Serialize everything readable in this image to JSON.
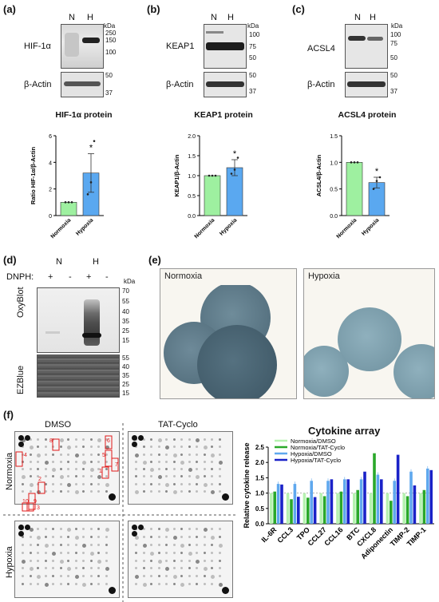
{
  "panels": {
    "a": "(a)",
    "b": "(b)",
    "c": "(c)",
    "d": "(d)",
    "e": "(e)",
    "f": "(f)"
  },
  "lanes": {
    "n": "N",
    "h": "H",
    "kda": "kDa"
  },
  "actin": "β-Actin",
  "panel_a": {
    "protein": "HIF-1α",
    "markers_top": [
      "250",
      "150",
      "100"
    ],
    "markers_bottom": [
      "50",
      "37"
    ]
  },
  "panel_b": {
    "protein": "KEAP1",
    "markers_top": [
      "100",
      "75",
      "50"
    ],
    "markers_bottom": [
      "50",
      "37"
    ]
  },
  "panel_c": {
    "protein": "ACSL4",
    "markers_top": [
      "100",
      "75",
      "50"
    ],
    "markers_bottom": [
      "50",
      "37"
    ]
  },
  "chart_data": [
    {
      "type": "bar",
      "title": "HIF-1α protein",
      "ylabel": "Ratio HIF-1α/β-Actin",
      "categories": [
        "Normoxia",
        "Hypoxia"
      ],
      "values": [
        1.0,
        3.2
      ],
      "errors": [
        0.0,
        1.45
      ],
      "points": [
        [
          1.0,
          1.0,
          1.0
        ],
        [
          1.6,
          2.5,
          5.6
        ]
      ],
      "ylim": [
        0,
        6
      ],
      "yticks": [
        "0",
        "2",
        "4",
        "6"
      ],
      "annotation": "*",
      "colors": [
        "#9ef0a0",
        "#5aa8f0"
      ]
    },
    {
      "type": "bar",
      "title": "KEAP1 protein",
      "ylabel": "KEAP1/β-Actin",
      "categories": [
        "Normoxia",
        "Hypoxia"
      ],
      "values": [
        1.0,
        1.2
      ],
      "errors": [
        0.0,
        0.2
      ],
      "points": [
        [
          1.0,
          1.0,
          1.0
        ],
        [
          1.05,
          1.15,
          1.45
        ]
      ],
      "ylim": [
        0,
        2
      ],
      "yticks": [
        "0.0",
        "0.5",
        "1.0",
        "1.5",
        "2.0"
      ],
      "annotation": "*",
      "colors": [
        "#9ef0a0",
        "#5aa8f0"
      ]
    },
    {
      "type": "bar",
      "title": "ACSL4 protein",
      "ylabel": "ACSL4/β-Actin",
      "categories": [
        "Normoxia",
        "Hypoxia"
      ],
      "values": [
        1.0,
        0.62
      ],
      "errors": [
        0.0,
        0.1
      ],
      "points": [
        [
          1.0,
          1.0,
          1.0
        ],
        [
          0.5,
          0.65,
          0.72
        ]
      ],
      "ylim": [
        0,
        1.5
      ],
      "yticks": [
        "0.0",
        "0.5",
        "1.0",
        "1.5"
      ],
      "annotation": "*",
      "colors": [
        "#9ef0a0",
        "#5aa8f0"
      ]
    },
    {
      "type": "bar",
      "title": "Cytokine array",
      "ylabel": "Relative cytokine release",
      "categories": [
        "IL-6R",
        "CCL3",
        "TPO",
        "CCL27",
        "CCL16",
        "BTC",
        "CXCL8",
        "Adiponectin",
        "TIMP-2",
        "TIMP-1"
      ],
      "series": [
        {
          "name": "Normoxia/DMSO",
          "color": "#b6f2b0",
          "values": [
            1,
            1,
            1,
            1,
            1,
            1,
            1,
            1,
            1,
            1
          ]
        },
        {
          "name": "Normoxia/TAT-Cyclo",
          "color": "#2aa82a",
          "values": [
            1.05,
            0.8,
            0.85,
            0.9,
            1.05,
            1.1,
            2.3,
            0.75,
            0.9,
            1.1
          ]
        },
        {
          "name": "Hypoxia/DMSO",
          "color": "#5fa8ee",
          "values": [
            1.3,
            1.3,
            1.4,
            1.4,
            1.45,
            1.45,
            1.6,
            1.4,
            1.7,
            1.8
          ]
        },
        {
          "name": "Hypoxia/TAT-Cyclo",
          "color": "#1a22c8",
          "values": [
            1.28,
            0.88,
            0.87,
            1.45,
            1.45,
            1.7,
            1.45,
            2.25,
            1.25,
            1.75
          ]
        }
      ],
      "ylim": [
        0,
        2.5
      ],
      "yticks": [
        "0.0",
        "0.5",
        "1.0",
        "1.5",
        "2.0",
        "2.5"
      ]
    }
  ],
  "panel_d": {
    "dnph": "DNPH:",
    "lane_signs": [
      "+",
      "-",
      "+",
      "-"
    ],
    "oxyblot": "OxyBlot",
    "ezblue": "EZBlue",
    "markers_top": [
      "70",
      "55",
      "40",
      "35",
      "25",
      "15"
    ],
    "markers_bottom": [
      "55",
      "40",
      "35",
      "25",
      "15"
    ]
  },
  "panel_e": {
    "left": "Normoxia",
    "right": "Hypoxia"
  },
  "panel_f": {
    "col_dmso": "DMSO",
    "col_tat": "TAT-Cyclo",
    "row_norm": "Normoxia",
    "row_hyp": "Hypoxia",
    "box_numbers": [
      "1",
      "2",
      "3",
      "4",
      "5",
      "6",
      "7",
      "8",
      "9",
      "10"
    ]
  }
}
